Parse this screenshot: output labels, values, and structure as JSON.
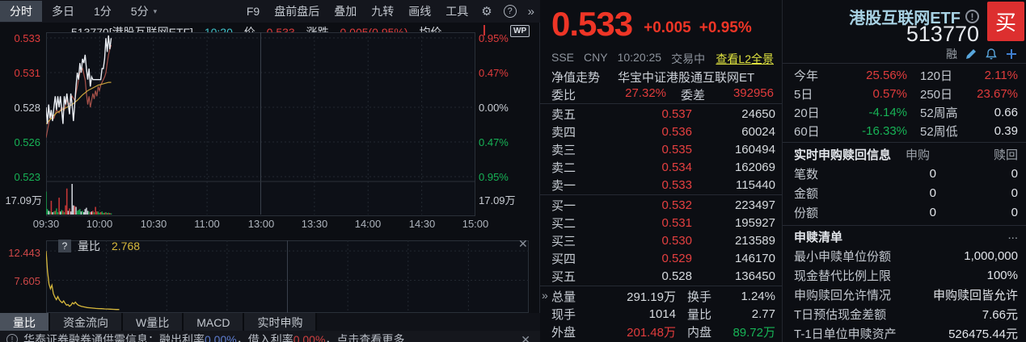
{
  "colors": {
    "up": "#e13c3c",
    "down": "#17b356",
    "flat": "#c9cdd4",
    "price_line": "#e9edf3",
    "overlay_line": "#a8524a",
    "avg_line": "#c9a33a",
    "vol_green": "#169b4a",
    "vol_red": "#c23636",
    "vol_white": "#c6cad1",
    "ratio_line": "#d8b93c",
    "grid": "#232831",
    "grid_mid": "#39404b",
    "accent_buy": "#dd2f2f",
    "link_yellow": "#dfe23f",
    "title_blue": "#a8d2e4"
  },
  "toolbar": {
    "tabs": [
      "分时",
      "多日",
      "1分",
      "5分"
    ],
    "selected_tab": "分时",
    "dropdown_icon": "▾",
    "menu": [
      "F9",
      "盘前盘后",
      "叠加",
      "九转",
      "画线",
      "工具"
    ],
    "gear_icon": "⚙",
    "help_icon": "?",
    "more_icon": "»"
  },
  "chart_header": {
    "code_name": "513770[港股互联网ETF]",
    "time": "10:20",
    "price_label": "价",
    "price": "0.533",
    "change_label": "涨跌",
    "change": "0.005(0.95%)",
    "avg_label": "均价",
    "wp_badge": "WP"
  },
  "main_chart": {
    "y_left": [
      "0.533",
      "0.531",
      "0.528",
      "0.526",
      "0.523"
    ],
    "y_right": [
      "0.95%",
      "0.47%",
      "0.00%",
      "0.47%",
      "0.95%"
    ],
    "vol_max_left": "17.09万",
    "vol_max_right": "17.09万",
    "x_ticks": [
      "09:30",
      "10:00",
      "10:30",
      "11:00",
      "13:00",
      "13:30",
      "14:00",
      "14:30",
      "15:00"
    ]
  },
  "chart_data": {
    "type": "line",
    "title": "分时图 513770 港股互联网ETF",
    "prev_close": 0.528,
    "session_minutes": 330,
    "pct_range": [
      -1.06,
      1.06
    ],
    "price": [
      [
        0,
        0.528
      ],
      [
        1,
        0.5268
      ],
      [
        2,
        0.5282
      ],
      [
        3,
        0.5272
      ],
      [
        4,
        0.5278
      ],
      [
        5,
        0.527
      ],
      [
        6,
        0.528
      ],
      [
        7,
        0.5288
      ],
      [
        8,
        0.5278
      ],
      [
        9,
        0.5288
      ],
      [
        10,
        0.528
      ],
      [
        11,
        0.5288
      ],
      [
        12,
        0.5278
      ],
      [
        13,
        0.5268
      ],
      [
        14,
        0.5288
      ],
      [
        15,
        0.5282
      ],
      [
        16,
        0.529
      ],
      [
        17,
        0.5282
      ],
      [
        18,
        0.5275
      ],
      [
        19,
        0.529
      ],
      [
        20,
        0.5282
      ],
      [
        21,
        0.527
      ],
      [
        22,
        0.5282
      ],
      [
        23,
        0.5295
      ],
      [
        24,
        0.5305
      ],
      [
        25,
        0.53
      ],
      [
        26,
        0.5312
      ],
      [
        27,
        0.5305
      ],
      [
        28,
        0.5315
      ],
      [
        29,
        0.5312
      ],
      [
        30,
        0.5318
      ],
      [
        31,
        0.5308
      ],
      [
        32,
        0.53
      ],
      [
        33,
        0.5308
      ],
      [
        34,
        0.5295
      ],
      [
        35,
        0.5302
      ],
      [
        36,
        0.53
      ],
      [
        37,
        0.53
      ],
      [
        38,
        0.53
      ],
      [
        39,
        0.53
      ],
      [
        40,
        0.53
      ],
      [
        41,
        0.53
      ],
      [
        42,
        0.53
      ],
      [
        43,
        0.5308
      ],
      [
        44,
        0.5308
      ],
      [
        45,
        0.5315
      ],
      [
        46,
        0.533
      ],
      [
        47,
        0.532
      ],
      [
        48,
        0.5332
      ],
      [
        49,
        0.5322
      ],
      [
        50,
        0.533
      ]
    ],
    "overlay": [
      [
        0,
        0.5258
      ],
      [
        2,
        0.5268
      ],
      [
        4,
        0.5275
      ],
      [
        6,
        0.5272
      ],
      [
        8,
        0.5278
      ],
      [
        10,
        0.5276
      ],
      [
        12,
        0.528
      ],
      [
        14,
        0.5278
      ],
      [
        16,
        0.5285
      ],
      [
        18,
        0.5282
      ],
      [
        20,
        0.5288
      ],
      [
        22,
        0.5285
      ],
      [
        24,
        0.5295
      ],
      [
        26,
        0.5305
      ],
      [
        28,
        0.5308
      ],
      [
        30,
        0.53
      ],
      [
        31,
        0.529
      ],
      [
        32,
        0.5282
      ],
      [
        33,
        0.5288
      ],
      [
        34,
        0.528
      ],
      [
        35,
        0.5285
      ],
      [
        36,
        0.529
      ],
      [
        37,
        0.5286
      ],
      [
        38,
        0.5292
      ],
      [
        39,
        0.5288
      ],
      [
        40,
        0.5295
      ],
      [
        41,
        0.5292
      ],
      [
        42,
        0.5296
      ],
      [
        43,
        0.5298
      ],
      [
        44,
        0.53
      ],
      [
        45,
        0.5302
      ],
      [
        46,
        0.5305
      ],
      [
        47,
        0.5312
      ],
      [
        48,
        0.5318
      ],
      [
        49,
        0.5322
      ],
      [
        50,
        0.5325
      ]
    ],
    "avg": [
      [
        0,
        0.5268
      ],
      [
        4,
        0.5272
      ],
      [
        8,
        0.5276
      ],
      [
        12,
        0.5278
      ],
      [
        16,
        0.528
      ],
      [
        20,
        0.5282
      ],
      [
        24,
        0.5285
      ],
      [
        28,
        0.5289
      ],
      [
        32,
        0.5292
      ],
      [
        36,
        0.5294
      ],
      [
        40,
        0.5296
      ],
      [
        44,
        0.5297
      ],
      [
        48,
        0.5298
      ],
      [
        50,
        0.5298
      ]
    ],
    "volume": [
      [
        0,
        0.75,
        "g"
      ],
      [
        1,
        0.18,
        "g"
      ],
      [
        2,
        0.12,
        "w"
      ],
      [
        3,
        0.1,
        "g"
      ],
      [
        4,
        0.45,
        "r"
      ],
      [
        5,
        0.08,
        "w"
      ],
      [
        6,
        0.1,
        "g"
      ],
      [
        7,
        0.12,
        "r"
      ],
      [
        8,
        0.2,
        "g"
      ],
      [
        9,
        0.08,
        "g"
      ],
      [
        10,
        0.55,
        "r"
      ],
      [
        11,
        0.1,
        "w"
      ],
      [
        12,
        0.15,
        "g"
      ],
      [
        13,
        0.12,
        "r"
      ],
      [
        14,
        0.08,
        "g"
      ],
      [
        15,
        0.3,
        "r"
      ],
      [
        16,
        0.85,
        "r"
      ],
      [
        17,
        0.12,
        "w"
      ],
      [
        18,
        0.2,
        "r"
      ],
      [
        19,
        0.1,
        "w"
      ],
      [
        20,
        1.0,
        "w"
      ],
      [
        21,
        0.3,
        "w"
      ],
      [
        22,
        0.28,
        "r"
      ],
      [
        23,
        0.25,
        "w"
      ],
      [
        24,
        0.12,
        "g"
      ],
      [
        25,
        0.15,
        "g"
      ],
      [
        26,
        0.18,
        "g"
      ],
      [
        27,
        0.1,
        "w"
      ],
      [
        28,
        0.12,
        "g"
      ],
      [
        29,
        0.08,
        "w"
      ],
      [
        30,
        0.18,
        "w"
      ],
      [
        31,
        0.22,
        "w"
      ],
      [
        32,
        0.12,
        "w"
      ],
      [
        33,
        0.1,
        "g"
      ],
      [
        34,
        0.08,
        "r"
      ],
      [
        35,
        0.1,
        "w"
      ],
      [
        36,
        0.12,
        "r"
      ],
      [
        37,
        0.08,
        "g"
      ],
      [
        38,
        0.25,
        "r"
      ],
      [
        39,
        0.1,
        "r"
      ],
      [
        40,
        0.1,
        "g"
      ],
      [
        41,
        0.06,
        "g"
      ],
      [
        42,
        0.08,
        "r"
      ],
      [
        43,
        0.1,
        "g"
      ],
      [
        44,
        0.05,
        "g"
      ],
      [
        45,
        0.06,
        "r"
      ],
      [
        46,
        0.08,
        "g"
      ],
      [
        47,
        0.05,
        "r"
      ],
      [
        48,
        0.06,
        "g"
      ],
      [
        49,
        0.05,
        "r"
      ],
      [
        50,
        0.04,
        "g"
      ]
    ],
    "volume_max": "17.09万",
    "ratio": [
      [
        0,
        12.44
      ],
      [
        1,
        9.0
      ],
      [
        2,
        7.0
      ],
      [
        3,
        6.2
      ],
      [
        4,
        6.8
      ],
      [
        5,
        5.4
      ],
      [
        6,
        4.8
      ],
      [
        7,
        4.4
      ],
      [
        8,
        4.9
      ],
      [
        9,
        4.4
      ],
      [
        10,
        4.1
      ],
      [
        11,
        3.9
      ],
      [
        12,
        4.2
      ],
      [
        13,
        3.8
      ],
      [
        14,
        3.5
      ],
      [
        15,
        3.6
      ],
      [
        16,
        3.3
      ],
      [
        17,
        3.5
      ],
      [
        18,
        3.9
      ],
      [
        19,
        3.7
      ],
      [
        20,
        4.0
      ],
      [
        21,
        3.7
      ],
      [
        22,
        3.5
      ],
      [
        23,
        3.4
      ],
      [
        24,
        3.3
      ],
      [
        25,
        3.25
      ],
      [
        26,
        3.2
      ],
      [
        27,
        3.15
      ],
      [
        28,
        3.1
      ],
      [
        30,
        3.05
      ],
      [
        32,
        3.0
      ],
      [
        34,
        2.95
      ],
      [
        36,
        2.92
      ],
      [
        38,
        2.9
      ],
      [
        40,
        2.87
      ],
      [
        42,
        2.85
      ],
      [
        44,
        2.82
      ],
      [
        46,
        2.8
      ],
      [
        48,
        2.78
      ],
      [
        50,
        2.768
      ]
    ],
    "ratio_axis": [
      14.2,
      2.2
    ]
  },
  "ratio_panel": {
    "help_icon": "?",
    "label": "量比",
    "value": "2.768",
    "y_labels": [
      "12.443",
      "7.605"
    ],
    "close_icon": "✕"
  },
  "bottom_tabs": [
    "量比",
    "资金流向",
    "W量比",
    "MACD",
    "实时申购"
  ],
  "bottom_tabs_selected": "量比",
  "notice": {
    "info_icon": "!",
    "prefix": "华泰证券融券通供需信息：融出利率 ",
    "rate1": "0.00%",
    "mid": "，借入利率 ",
    "rate2": "0.00%",
    "suffix": "，点击查看更多",
    "close_icon": "✕"
  },
  "quote": {
    "price": "0.533",
    "change": "+0.005",
    "change_pct": "+0.95%",
    "exchange": "SSE",
    "currency": "CNY",
    "time": "10:20:25",
    "status": "交易中",
    "l2_link": "查看L2全景",
    "nav_label": "净值走势",
    "fund_name": "华宝中证港股通互联网ET",
    "weibi_label": "委比",
    "weibi": "27.32%",
    "weicha_label": "委差",
    "weicha": "392956",
    "asks": [
      {
        "label": "卖五",
        "price": "0.537",
        "vol": "24650"
      },
      {
        "label": "卖四",
        "price": "0.536",
        "vol": "60024"
      },
      {
        "label": "卖三",
        "price": "0.535",
        "vol": "160494"
      },
      {
        "label": "卖二",
        "price": "0.534",
        "vol": "162069"
      },
      {
        "label": "卖一",
        "price": "0.533",
        "vol": "115440"
      }
    ],
    "bids": [
      {
        "label": "买一",
        "price": "0.532",
        "vol": "223497"
      },
      {
        "label": "买二",
        "price": "0.531",
        "vol": "195927"
      },
      {
        "label": "买三",
        "price": "0.530",
        "vol": "213589"
      },
      {
        "label": "买四",
        "price": "0.529",
        "vol": "146170"
      },
      {
        "label": "买五",
        "price": "0.528",
        "vol": "136450"
      }
    ],
    "expand_icon": "»",
    "totals": [
      {
        "l1": "总量",
        "v1": "291.19万",
        "l2": "换手",
        "v2": "1.24%"
      },
      {
        "l1": "现手",
        "v1": "1014",
        "l2": "量比",
        "v2": "2.77"
      },
      {
        "l1": "外盘",
        "v1": "201.48万",
        "l2": "内盘",
        "v2": "89.72万"
      }
    ]
  },
  "panel": {
    "title": "港股互联网ETF",
    "info_icon": "!",
    "code": "513770",
    "buy_button": "买",
    "margin_icon": "融",
    "perf": [
      {
        "l1": "今年",
        "v1": "25.56%",
        "l2": "120日",
        "v2": "2.11%"
      },
      {
        "l1": "5日",
        "v1": "0.57%",
        "l2": "250日",
        "v2": "23.67%"
      },
      {
        "l1": "20日",
        "v1": "-4.14%",
        "l2": "52周高",
        "v2": "0.66"
      },
      {
        "l1": "60日",
        "v1": "-16.33%",
        "l2": "52周低",
        "v2": "0.39"
      }
    ],
    "rt": {
      "title": "实时申购赎回信息",
      "col1": "申购",
      "col2": "赎回",
      "rows": [
        {
          "label": "笔数",
          "v1": "0",
          "v2": "0"
        },
        {
          "label": "金额",
          "v1": "0",
          "v2": "0"
        },
        {
          "label": "份额",
          "v1": "0",
          "v2": "0"
        }
      ]
    },
    "list": {
      "title": "申赎清单",
      "more": "...",
      "rows": [
        {
          "label": "最小申赎单位份额",
          "value": "1,000,000"
        },
        {
          "label": "现金替代比例上限",
          "value": "100%"
        },
        {
          "label": "申购赎回允许情况",
          "value": "申购赎回皆允许"
        },
        {
          "label": "T日预估现金差额",
          "value": "7.66元"
        },
        {
          "label": "T-1日单位申赎资产",
          "value": "526475.44元"
        }
      ]
    }
  }
}
